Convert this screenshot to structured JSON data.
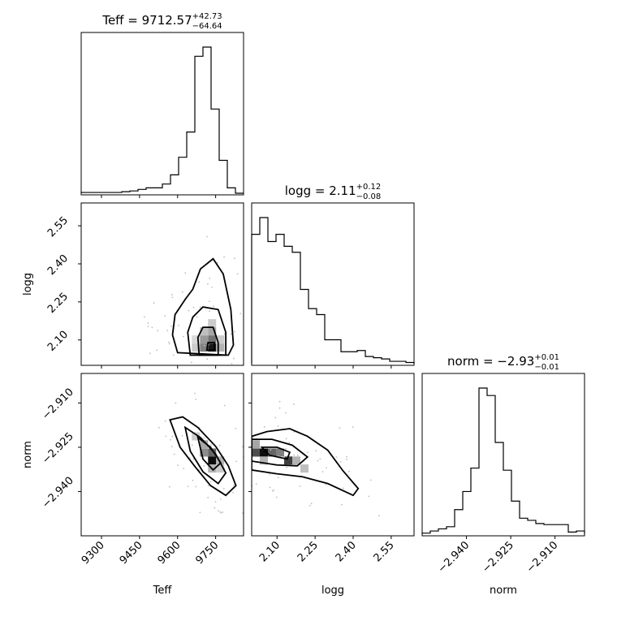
{
  "chart_data": {
    "type": "corner",
    "parameters": [
      "Teff",
      "logg",
      "norm"
    ],
    "axis_labels": {
      "Teff": "Teff",
      "logg": "logg",
      "norm": "norm"
    },
    "titles": [
      {
        "param": "Teff",
        "prefix": "Teff = ",
        "value": "9712.57",
        "plus": "+42.73",
        "minus": "−64.64"
      },
      {
        "param": "logg",
        "prefix": "logg = ",
        "value": "2.11",
        "plus": "+0.12",
        "minus": "−0.08"
      },
      {
        "param": "norm",
        "prefix": "norm = ",
        "value": "−2.93",
        "plus": "+0.01",
        "minus": "−0.01"
      }
    ],
    "ranges": {
      "Teff": [
        9220,
        9860
      ],
      "logg": [
        2.0,
        2.64
      ],
      "norm": [
        -2.955,
        -2.9
      ]
    },
    "ticks": {
      "Teff": {
        "values": [
          9300,
          9450,
          9600,
          9750
        ],
        "labels": [
          "9300",
          "9450",
          "9600",
          "9750"
        ]
      },
      "logg": {
        "values": [
          2.1,
          2.25,
          2.4,
          2.55
        ],
        "labels": [
          "2.10",
          "2.25",
          "2.40",
          "2.55"
        ]
      },
      "norm": {
        "values": [
          -2.94,
          -2.925,
          -2.91
        ],
        "labels": [
          "−2.940",
          "−2.925",
          "−2.910"
        ]
      }
    },
    "histograms": {
      "Teff": {
        "edges": [
          9220,
          9252,
          9284,
          9316,
          9348,
          9380,
          9412,
          9444,
          9476,
          9508,
          9540,
          9572,
          9604,
          9636,
          9668,
          9700,
          9732,
          9764,
          9796,
          9828,
          9860
        ],
        "counts": [
          1,
          1,
          1,
          1,
          1,
          2,
          3,
          5,
          7,
          7,
          12,
          24,
          47,
          80,
          179,
          191,
          110,
          43,
          7,
          0
        ]
      },
      "logg": {
        "edges": [
          2.0,
          2.032,
          2.064,
          2.096,
          2.128,
          2.16,
          2.192,
          2.224,
          2.256,
          2.288,
          2.32,
          2.352,
          2.384,
          2.416,
          2.448,
          2.48,
          2.512,
          2.544,
          2.576,
          2.608,
          2.64
        ],
        "counts": [
          108,
          122,
          102,
          108,
          98,
          93,
          62,
          46,
          41,
          20,
          20,
          10,
          10,
          11,
          6,
          5,
          4,
          2,
          2,
          1
        ]
      },
      "norm": {
        "edges": [
          -2.955,
          -2.95225,
          -2.9495,
          -2.94675,
          -2.944,
          -2.94125,
          -2.9385,
          -2.93575,
          -2.933,
          -2.93025,
          -2.9275,
          -2.92475,
          -2.922,
          -2.91925,
          -2.9165,
          -2.91375,
          -2.911,
          -2.90825,
          -2.9055,
          -2.90275,
          -2.9
        ],
        "counts": [
          1,
          3,
          5,
          7,
          23,
          40,
          62,
          137,
          130,
          86,
          60,
          31,
          15,
          13,
          10,
          9,
          9,
          9,
          2,
          3
        ]
      }
    },
    "pairs": [
      {
        "x": "Teff",
        "y": "logg",
        "contours": [
          [
            [
              9600,
              2.05
            ],
            [
              9580,
              2.12
            ],
            [
              9590,
              2.2
            ],
            [
              9630,
              2.26
            ],
            [
              9660,
              2.3
            ],
            [
              9690,
              2.38
            ],
            [
              9740,
              2.42
            ],
            [
              9780,
              2.36
            ],
            [
              9810,
              2.22
            ],
            [
              9820,
              2.08
            ],
            [
              9800,
              2.04
            ]
          ],
          [
            [
              9650,
              2.04
            ],
            [
              9640,
              2.13
            ],
            [
              9660,
              2.19
            ],
            [
              9700,
              2.23
            ],
            [
              9760,
              2.22
            ],
            [
              9790,
              2.13
            ],
            [
              9790,
              2.04
            ]
          ],
          [
            [
              9685,
              2.04
            ],
            [
              9680,
              2.11
            ],
            [
              9700,
              2.15
            ],
            [
              9740,
              2.15
            ],
            [
              9760,
              2.09
            ],
            [
              9760,
              2.04
            ]
          ],
          [
            [
              9715,
              2.06
            ],
            [
              9720,
              2.09
            ],
            [
              9745,
              2.09
            ],
            [
              9745,
              2.06
            ]
          ]
        ],
        "hist2d": [
          {
            "x": 9736,
            "y": 2.07,
            "w": 0.9
          },
          {
            "x": 9704,
            "y": 2.07,
            "w": 0.5
          },
          {
            "x": 9736,
            "y": 2.102,
            "w": 0.55
          },
          {
            "x": 9704,
            "y": 2.102,
            "w": 0.4
          },
          {
            "x": 9736,
            "y": 2.134,
            "w": 0.35
          },
          {
            "x": 9704,
            "y": 2.134,
            "w": 0.25
          },
          {
            "x": 9736,
            "y": 2.166,
            "w": 0.2
          },
          {
            "x": 9672,
            "y": 2.07,
            "w": 0.2
          },
          {
            "x": 9768,
            "y": 2.07,
            "w": 0.3
          },
          {
            "x": 9672,
            "y": 2.102,
            "w": 0.15
          },
          {
            "x": 9768,
            "y": 2.102,
            "w": 0.2
          }
        ]
      },
      {
        "x": "Teff",
        "y": "norm",
        "contours": [
          [
            [
              9570,
              -2.9157
            ],
            [
              9620,
              -2.9147
            ],
            [
              9680,
              -2.9183
            ],
            [
              9750,
              -2.9247
            ],
            [
              9800,
              -2.9313
            ],
            [
              9830,
              -2.938
            ],
            [
              9790,
              -2.9413
            ],
            [
              9730,
              -2.938
            ],
            [
              9670,
              -2.9317
            ],
            [
              9610,
              -2.925
            ]
          ],
          [
            [
              9630,
              -2.9183
            ],
            [
              9690,
              -2.9217
            ],
            [
              9750,
              -2.9273
            ],
            [
              9790,
              -2.9337
            ],
            [
              9760,
              -2.9373
            ],
            [
              9700,
              -2.9333
            ],
            [
              9650,
              -2.9263
            ]
          ],
          [
            [
              9680,
              -2.9217
            ],
            [
              9730,
              -2.925
            ],
            [
              9770,
              -2.9303
            ],
            [
              9740,
              -2.9327
            ],
            [
              9700,
              -2.929
            ]
          ]
        ],
        "hist2d": [
          {
            "x": 9736,
            "y": -2.9295,
            "w": 0.95
          },
          {
            "x": 9736,
            "y": -2.9268,
            "w": 0.6
          },
          {
            "x": 9704,
            "y": -2.9268,
            "w": 0.45
          },
          {
            "x": 9704,
            "y": -2.924,
            "w": 0.35
          },
          {
            "x": 9768,
            "y": -2.9295,
            "w": 0.3
          },
          {
            "x": 9736,
            "y": -2.9322,
            "w": 0.3
          },
          {
            "x": 9672,
            "y": -2.9213,
            "w": 0.2
          },
          {
            "x": 9768,
            "y": -2.9322,
            "w": 0.2
          }
        ]
      },
      {
        "x": "logg",
        "y": "norm",
        "contours": [
          [
            [
              2.0,
              -2.9213
            ],
            [
              2.06,
              -2.9197
            ],
            [
              2.15,
              -2.9187
            ],
            [
              2.22,
              -2.9213
            ],
            [
              2.3,
              -2.926
            ],
            [
              2.36,
              -2.933
            ],
            [
              2.42,
              -2.939
            ],
            [
              2.4,
              -2.9413
            ],
            [
              2.3,
              -2.9373
            ],
            [
              2.2,
              -2.935
            ],
            [
              2.1,
              -2.934
            ],
            [
              2.0,
              -2.9327
            ]
          ],
          [
            [
              2.0,
              -2.9223
            ],
            [
              2.08,
              -2.9223
            ],
            [
              2.16,
              -2.9243
            ],
            [
              2.22,
              -2.9283
            ],
            [
              2.18,
              -2.9313
            ],
            [
              2.1,
              -2.931
            ],
            [
              2.0,
              -2.9297
            ]
          ],
          [
            [
              2.04,
              -2.925
            ],
            [
              2.1,
              -2.925
            ],
            [
              2.15,
              -2.9267
            ],
            [
              2.14,
              -2.929
            ],
            [
              2.07,
              -2.9277
            ]
          ]
        ],
        "hist2d": [
          {
            "x": 2.048,
            "y": -2.9268,
            "w": 0.95
          },
          {
            "x": 2.016,
            "y": -2.9268,
            "w": 0.7
          },
          {
            "x": 2.08,
            "y": -2.9268,
            "w": 0.6
          },
          {
            "x": 2.144,
            "y": -2.9295,
            "w": 0.75
          },
          {
            "x": 2.112,
            "y": -2.9268,
            "w": 0.5
          },
          {
            "x": 2.016,
            "y": -2.924,
            "w": 0.35
          },
          {
            "x": 2.176,
            "y": -2.9295,
            "w": 0.3
          },
          {
            "x": 2.208,
            "y": -2.9322,
            "w": 0.25
          },
          {
            "x": 2.048,
            "y": -2.9295,
            "w": 0.3
          }
        ]
      }
    ],
    "grid": false,
    "legend": "none"
  }
}
